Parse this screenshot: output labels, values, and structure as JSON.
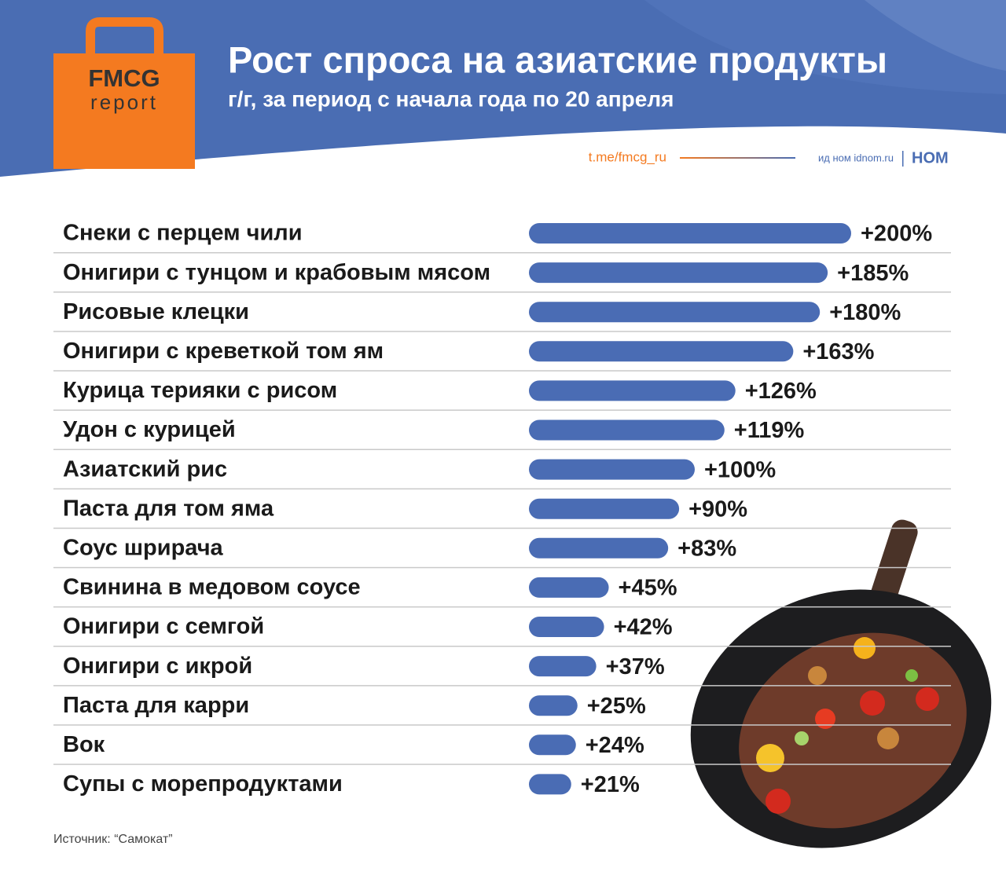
{
  "brand": {
    "logo_top": "FMCG",
    "logo_bottom": "report",
    "channel": "t.me/fmcg_ru",
    "partner": "ид ном idnom.ru",
    "partner_logo": "НОМ"
  },
  "chart_data": {
    "type": "bar",
    "title": "Рост спроса на азиатские продукты",
    "subtitle": "г/г, за период с начала года по 20 апреля",
    "categories": [
      "Снеки с перцем чили",
      "Онигири с тунцом и крабовым мясом",
      "Рисовые клецки",
      "Онигири с креветкой том ям",
      "Курица терияки с рисом",
      "Удон с курицей",
      "Азиатский рис",
      "Паста для том яма",
      "Соус шрирача",
      "Свинина в медовом соусе",
      "Онигири с семгой",
      "Онигири с икрой",
      "Паста для карри",
      "Вок",
      "Супы с морепродуктами"
    ],
    "values": [
      200,
      185,
      180,
      163,
      126,
      119,
      100,
      90,
      83,
      45,
      42,
      37,
      25,
      24,
      21
    ],
    "value_labels": [
      "+200%",
      "+185%",
      "+180%",
      "+163%",
      "+126%",
      "+119%",
      "+100%",
      "+90%",
      "+83%",
      "+45%",
      "+42%",
      "+37%",
      "+25%",
      "+24%",
      "+21%"
    ],
    "color": "#4a6cb4"
  },
  "footer": {
    "source": "Источник: “Самокат”"
  }
}
